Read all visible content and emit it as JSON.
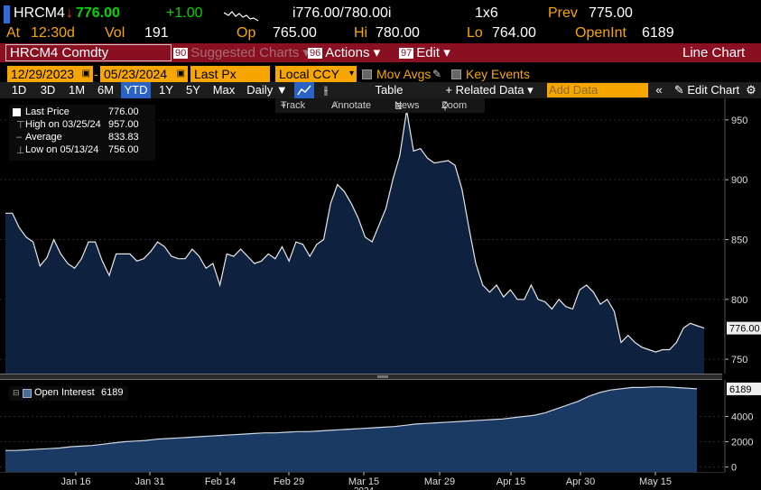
{
  "quote": {
    "ticker": "HRCM4",
    "last": "776.00",
    "change": "+1.00",
    "bid_ask": "i776.00/780.00i",
    "size": "1x6",
    "prev_label": "Prev",
    "prev": "775.00",
    "at_label": "At",
    "time": "12:30d",
    "vol_label": "Vol",
    "vol": "191",
    "op_label": "Op",
    "op": "765.00",
    "hi_label": "Hi",
    "hi": "780.00",
    "lo_label": "Lo",
    "lo": "764.00",
    "oi_label": "OpenInt",
    "oi": "6189"
  },
  "titlebar": {
    "security": "HRCM4 Comdty",
    "suggested_num": "90",
    "suggested": "Suggested Charts",
    "actions_num": "96",
    "actions": "Actions",
    "edit_num": "97",
    "edit": "Edit",
    "chart_type": "Line Chart"
  },
  "params": {
    "start_date": "12/29/2023",
    "end_date": "05/23/2024",
    "field": "Last Px",
    "currency": "Local CCY",
    "mov_avgs": "Mov Avgs",
    "key_events": "Key Events"
  },
  "toolbar": {
    "periods": [
      "1D",
      "3D",
      "1M",
      "6M",
      "YTD",
      "1Y",
      "5Y",
      "Max"
    ],
    "active_period": "YTD",
    "frequency": "Daily",
    "table": "Table",
    "related": "+ Related Data",
    "add_data_placeholder": "Add Data",
    "edit_chart": "Edit Chart"
  },
  "chart_tools": {
    "track": "Track",
    "annotate": "Annotate",
    "news": "News",
    "zoom": "Zoom"
  },
  "legend": {
    "last_label": "Last Price",
    "last_value": "776.00",
    "high_label": "High on 03/25/24",
    "high_value": "957.00",
    "avg_label": "Average",
    "avg_value": "833.83",
    "low_label": "Low on 05/13/24",
    "low_value": "756.00",
    "oi_label": "Open Interest",
    "oi_value": "6189"
  },
  "colors": {
    "accent_orange": "#f7a600",
    "title_red": "#8a0f20",
    "area_fill": "#0e2240",
    "oi_fill": "#1a3a64"
  },
  "chart_data": [
    {
      "type": "area",
      "series": [
        {
          "name": "Last Price",
          "values": [
            872,
            872,
            860,
            852,
            848,
            828,
            835,
            850,
            838,
            830,
            826,
            834,
            848,
            848,
            832,
            820,
            838,
            838,
            838,
            832,
            834,
            840,
            848,
            844,
            836,
            834,
            834,
            842,
            836,
            826,
            830,
            812,
            838,
            836,
            842,
            836,
            830,
            832,
            838,
            834,
            844,
            832,
            848,
            846,
            836,
            846,
            850,
            880,
            896,
            890,
            880,
            868,
            852,
            848,
            862,
            876,
            900,
            920,
            958,
            924,
            926,
            918,
            914,
            915,
            916,
            912,
            892,
            860,
            830,
            812,
            806,
            812,
            802,
            808,
            800,
            800,
            812,
            800,
            798,
            792,
            800,
            794,
            792,
            808,
            812,
            806,
            796,
            800,
            790,
            764,
            770,
            764,
            760,
            758,
            756,
            758,
            758,
            764,
            776,
            780,
            778,
            776
          ]
        }
      ],
      "ylim": [
        738,
        968
      ],
      "yticks": [
        750,
        800,
        850,
        900,
        950
      ],
      "last_value": 776.0
    },
    {
      "type": "area",
      "series": [
        {
          "name": "Open Interest",
          "values": [
            1300,
            1300,
            1350,
            1400,
            1450,
            1500,
            1600,
            1650,
            1700,
            1800,
            1900,
            2000,
            2050,
            2100,
            2200,
            2250,
            2300,
            2350,
            2400,
            2450,
            2500,
            2550,
            2600,
            2650,
            2700,
            2700,
            2750,
            2800,
            2800,
            2850,
            2900,
            2950,
            3000,
            3050,
            3100,
            3150,
            3200,
            3300,
            3400,
            3450,
            3500,
            3550,
            3600,
            3650,
            3700,
            3750,
            3800,
            3900,
            4000,
            4100,
            4300,
            4600,
            4900,
            5200,
            5600,
            5900,
            6100,
            6200,
            6300,
            6300,
            6350,
            6350,
            6300,
            6250,
            6189
          ]
        }
      ],
      "ylim": [
        -400,
        6900
      ],
      "yticks": [
        0,
        2000,
        4000
      ],
      "last_value": 6189
    }
  ],
  "xaxis": {
    "ticks": [
      "Jan 16",
      "Jan 31",
      "Feb 14",
      "Feb 29",
      "Mar 15",
      "Mar 29",
      "Apr 15",
      "Apr 30",
      "May 15"
    ],
    "year": "2024"
  }
}
